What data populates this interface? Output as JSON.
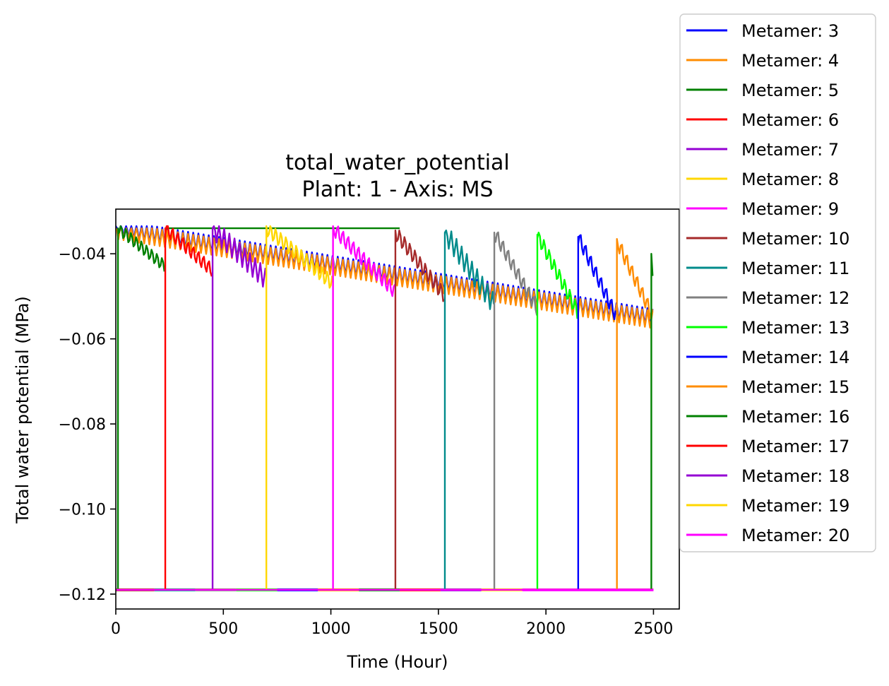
{
  "chart_data": {
    "type": "line",
    "title": "total_water_potential",
    "subtitle": "Plant: 1 - Axis: MS",
    "xlabel": "Time (Hour)",
    "ylabel": "Total water potential (MPa)",
    "xlim": [
      0,
      2620
    ],
    "ylim": [
      -0.1235,
      -0.0295
    ],
    "xticks": [
      0,
      500,
      1000,
      1500,
      2000,
      2500
    ],
    "xtick_labels": [
      "0",
      "500",
      "1000",
      "1500",
      "2000",
      "2500"
    ],
    "yticks": [
      -0.04,
      -0.06,
      -0.08,
      -0.1,
      -0.12
    ],
    "ytick_labels": [
      "−0.04",
      "−0.06",
      "−0.08",
      "−0.10",
      "−0.12"
    ],
    "grid": false,
    "legend_position": "outside-right",
    "series": [
      {
        "name": "Metamer: 3",
        "color": "#0000ff",
        "t_start": 0,
        "t_emerge": 0,
        "t_end": 2500,
        "psi_start": -0.034,
        "psi_end": -0.055,
        "amp": 0.004
      },
      {
        "name": "Metamer: 4",
        "color": "#ff8c00",
        "t_start": 0,
        "t_emerge": 0,
        "t_end": 2500,
        "psi_start": -0.0345,
        "psi_end": -0.0555,
        "amp": 0.004
      },
      {
        "name": "Metamer: 5",
        "color": "#008000",
        "t_start": 0,
        "t_emerge": 10,
        "t_end": 230,
        "psi_start": -0.034,
        "psi_end": -0.043,
        "amp": 0.004,
        "flat_until": 1320
      },
      {
        "name": "Metamer: 6",
        "color": "#ff0000",
        "t_start": 0,
        "t_emerge": 230,
        "t_end": 450,
        "psi_start": -0.034,
        "psi_end": -0.044,
        "amp": 0.0045
      },
      {
        "name": "Metamer: 7",
        "color": "#9400d3",
        "t_start": 0,
        "t_emerge": 450,
        "t_end": 700,
        "psi_start": -0.034,
        "psi_end": -0.046,
        "amp": 0.005
      },
      {
        "name": "Metamer: 8",
        "color": "#ffd700",
        "t_start": 0,
        "t_emerge": 700,
        "t_end": 1010,
        "psi_start": -0.034,
        "psi_end": -0.047,
        "amp": 0.005
      },
      {
        "name": "Metamer: 9",
        "color": "#ff00ff",
        "t_start": 0,
        "t_emerge": 1010,
        "t_end": 1300,
        "psi_start": -0.034,
        "psi_end": -0.049,
        "amp": 0.005
      },
      {
        "name": "Metamer: 10",
        "color": "#a52a2a",
        "t_start": 0,
        "t_emerge": 1300,
        "t_end": 1530,
        "psi_start": -0.035,
        "psi_end": -0.05,
        "amp": 0.005
      },
      {
        "name": "Metamer: 11",
        "color": "#008b8b",
        "t_start": 0,
        "t_emerge": 1530,
        "t_end": 1760,
        "psi_start": -0.035,
        "psi_end": -0.052,
        "amp": 0.005
      },
      {
        "name": "Metamer: 12",
        "color": "#808080",
        "t_start": 0,
        "t_emerge": 1760,
        "t_end": 1960,
        "psi_start": -0.035,
        "psi_end": -0.053,
        "amp": 0.005
      },
      {
        "name": "Metamer: 13",
        "color": "#00ff00",
        "t_start": 0,
        "t_emerge": 1960,
        "t_end": 2150,
        "psi_start": -0.0355,
        "psi_end": -0.054,
        "amp": 0.005
      },
      {
        "name": "Metamer: 14",
        "color": "#0000ff",
        "t_start": 0,
        "t_emerge": 2150,
        "t_end": 2330,
        "psi_start": -0.036,
        "psi_end": -0.055,
        "amp": 0.005
      },
      {
        "name": "Metamer: 15",
        "color": "#ff8c00",
        "t_start": 0,
        "t_emerge": 2330,
        "t_end": 2500,
        "psi_start": -0.037,
        "psi_end": -0.055,
        "amp": 0.005
      },
      {
        "name": "Metamer: 16",
        "color": "#008000",
        "t_start": 0,
        "t_emerge": 2490,
        "t_end": 2500,
        "psi_start": -0.04,
        "psi_end": -0.052,
        "amp": 0.004
      },
      {
        "name": "Metamer: 17",
        "color": "#ff0000",
        "t_start": 0,
        "t_emerge": 2500,
        "t_end": 2500,
        "psi_start": -0.119,
        "psi_end": -0.119,
        "amp": 0
      },
      {
        "name": "Metamer: 18",
        "color": "#9400d3",
        "t_start": 0,
        "t_emerge": 2500,
        "t_end": 2500,
        "psi_start": -0.119,
        "psi_end": -0.119,
        "amp": 0
      },
      {
        "name": "Metamer: 19",
        "color": "#ffd700",
        "t_start": 0,
        "t_emerge": 2500,
        "t_end": 2500,
        "psi_start": -0.119,
        "psi_end": -0.119,
        "amp": 0
      },
      {
        "name": "Metamer: 20",
        "color": "#ff00ff",
        "t_start": 0,
        "t_emerge": 2500,
        "t_end": 2500,
        "psi_start": -0.119,
        "psi_end": -0.119,
        "amp": 0
      }
    ],
    "baseline_value": -0.119,
    "baseline_segments": [
      {
        "color": "#a52a2a",
        "from": 0,
        "to": 180
      },
      {
        "color": "#008b8b",
        "from": 180,
        "to": 370
      },
      {
        "color": "#808080",
        "from": 370,
        "to": 560
      },
      {
        "color": "#00ff00",
        "from": 560,
        "to": 750
      },
      {
        "color": "#0000ff",
        "from": 750,
        "to": 940
      },
      {
        "color": "#ff8c00",
        "from": 940,
        "to": 1130
      },
      {
        "color": "#008000",
        "from": 1130,
        "to": 1320
      },
      {
        "color": "#ff0000",
        "from": 1320,
        "to": 1510
      },
      {
        "color": "#9400d3",
        "from": 1510,
        "to": 1700
      },
      {
        "color": "#ffd700",
        "from": 1700,
        "to": 1890
      },
      {
        "color": "#ff00ff",
        "from": 1890,
        "to": 2500
      }
    ]
  }
}
